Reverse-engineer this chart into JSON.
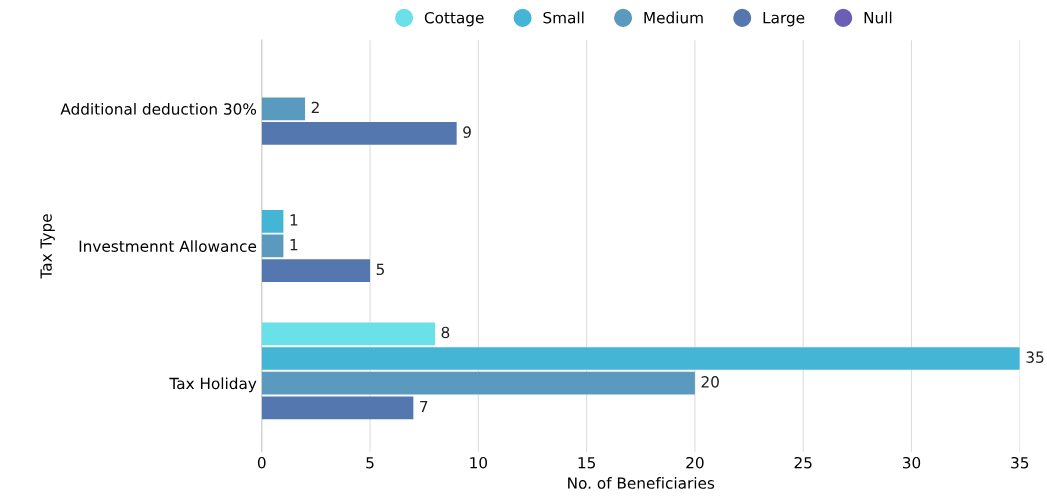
{
  "chart_data": {
    "type": "bar",
    "orientation": "horizontal",
    "xlabel": "No. of Beneficiaries",
    "ylabel": "Tax Type",
    "categories": [
      "Additional deduction 30%",
      "Investmennt Allowance",
      "Tax Holiday"
    ],
    "series": [
      {
        "name": "Cottage",
        "color": "#6ae0e8",
        "values": [
          null,
          null,
          8
        ]
      },
      {
        "name": "Small",
        "color": "#45b5d6",
        "values": [
          null,
          1,
          35
        ]
      },
      {
        "name": "Medium",
        "color": "#5b9abf",
        "values": [
          2,
          1,
          20
        ]
      },
      {
        "name": "Large",
        "color": "#5577b0",
        "values": [
          9,
          5,
          7
        ]
      },
      {
        "name": "Null",
        "color": "#6a5fb5",
        "values": [
          null,
          null,
          null
        ]
      }
    ],
    "xlim": [
      0,
      35
    ],
    "xticks": [
      0,
      5,
      10,
      15,
      20,
      25,
      30,
      35
    ],
    "grid": "x",
    "legend": "top",
    "marker": "circle",
    "data_labels": true
  }
}
